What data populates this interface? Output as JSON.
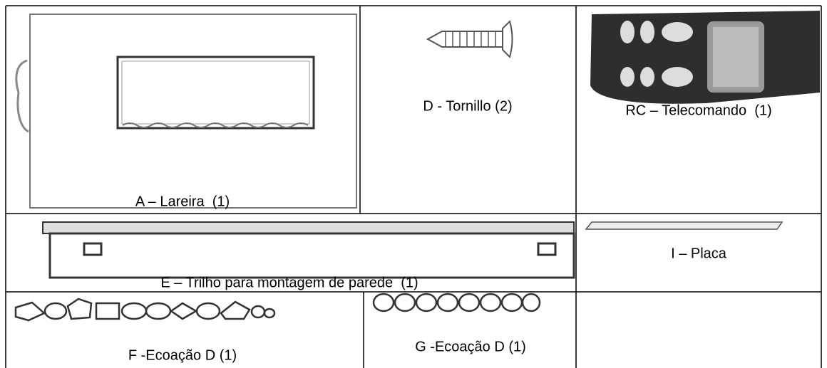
{
  "parts": [
    {
      "label": "A – Lareira  (1)"
    },
    {
      "label": "D - Tornillo (2)"
    },
    {
      "label": "RC – Telecomando  (1)"
    },
    {
      "label": "E – Trilho para montagem de parede  (1)"
    },
    {
      "label": "I – Placa"
    },
    {
      "label": "F -Ecoação D (1)"
    },
    {
      "label": "G -Ecoação D (1)"
    }
  ]
}
